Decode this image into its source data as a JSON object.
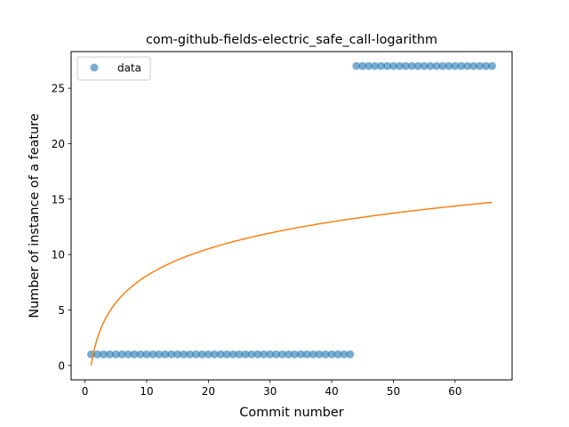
{
  "chart_data": {
    "type": "scatter",
    "title": "com-github-fields-electric_safe_call-logarithm",
    "xlabel": "Commit number",
    "ylabel": "Number of instance of a feature",
    "xlim": [
      -2.25,
      69.25
    ],
    "ylim": [
      -1.3,
      28.3
    ],
    "xticks": [
      0,
      10,
      20,
      30,
      40,
      50,
      60
    ],
    "yticks": [
      0,
      5,
      10,
      15,
      20,
      25
    ],
    "grid": false,
    "legend": {
      "placement": "upper-left",
      "entries": [
        "data"
      ]
    },
    "colors": {
      "data": "#1f77b4",
      "fit": "#ff7f0e"
    },
    "series": [
      {
        "name": "data",
        "kind": "scatter",
        "segments": [
          {
            "x_start": 1,
            "x_end": 43,
            "y": 1
          },
          {
            "x_start": 44,
            "x_end": 66,
            "y": 27
          }
        ]
      },
      {
        "kind": "line",
        "fit": "logarithmic",
        "x_range": [
          1,
          66
        ],
        "a": 0.0,
        "b": 3.51
      }
    ]
  }
}
